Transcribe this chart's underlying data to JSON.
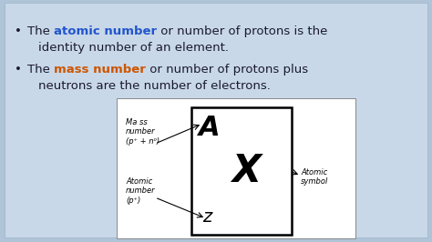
{
  "bg_color": "#b0c4d8",
  "text_color": "#1a1a2e",
  "highlight_blue": "#2255cc",
  "highlight_orange": "#cc5500",
  "diagram_label_mass": "Ma ss\nnumber\n(p⁺ + n⁰)",
  "diagram_label_atomic": "Atomic\nnumber\n(p⁺)",
  "diagram_label_symbol": "Atomic\nsymbol",
  "diagram_A": "A",
  "diagram_Z": "z",
  "diagram_X": "X",
  "figsize": [
    4.74,
    2.66
  ],
  "dpi": 100
}
